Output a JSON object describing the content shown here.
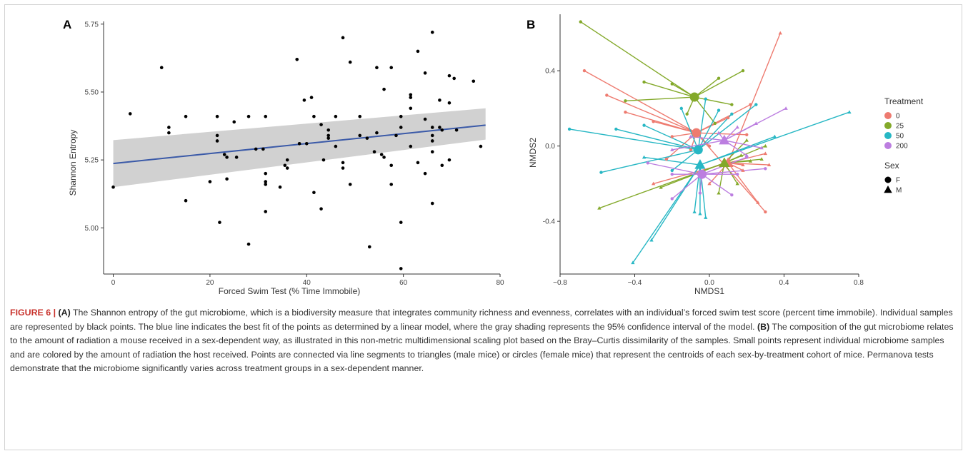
{
  "figure": {
    "label": "FIGURE 6 | ",
    "a_ref": "(A)",
    "text_a": " The Shannon entropy of the gut microbiome, which is a biodiversity measure that integrates community richness and evenness, correlates with an individual’s forced swim test score (percent time immobile). Individual samples are represented by black points. The blue line indicates the best fit of the points as determined by a linear model, where the gray shading represents the 95% confidence interval of the model. ",
    "b_ref": "(B)",
    "text_b": " The composition of the gut microbiome relates to the amount of radiation a mouse received in a sex-dependent way, as illustrated in this non-metric multidimensional scaling plot based on the Bray–Curtis dissimilarity of the samples. Small points represent individual microbiome samples and are colored by the amount of radiation the host received. Points are connected via line segments to triangles (male mice) or circles (female mice) that represent the centroids of each sex-by-treatment cohort of mice. Permanova tests demonstrate that the microbiome significantly varies across treatment groups in a sex-dependent manner."
  },
  "chart_data": [
    {
      "panel": "A",
      "type": "scatter",
      "xlabel": "Forced Swim Test (% Time Immobile)",
      "ylabel": "Shannon Entropy",
      "xlim": [
        -2,
        80
      ],
      "ylim": [
        4.83,
        5.76
      ],
      "xticks": [
        0,
        20,
        40,
        60,
        80
      ],
      "yticks": [
        5.0,
        5.25,
        5.5,
        5.75
      ],
      "ytick_labels": [
        "5.00",
        "5.25",
        "5.50",
        "5.75"
      ],
      "grid": false,
      "point_color": "#000000",
      "fit": {
        "color": "#3b5aa8",
        "x": [
          0,
          77
        ],
        "y": [
          5.237,
          5.378
        ]
      },
      "ci_band": {
        "color": "#cccccc",
        "x": [
          0,
          77
        ],
        "lower": [
          5.15,
          5.325
        ],
        "upper": [
          5.323,
          5.44
        ]
      },
      "points": [
        [
          0,
          5.15
        ],
        [
          3.5,
          5.42
        ],
        [
          10,
          5.59
        ],
        [
          11.5,
          5.37
        ],
        [
          11.5,
          5.35
        ],
        [
          15,
          5.41
        ],
        [
          15,
          5.1
        ],
        [
          20,
          5.17
        ],
        [
          21.5,
          5.41
        ],
        [
          21.5,
          5.34
        ],
        [
          21.5,
          5.32
        ],
        [
          22,
          5.02
        ],
        [
          23,
          5.27
        ],
        [
          23.5,
          5.18
        ],
        [
          23.5,
          5.26
        ],
        [
          25,
          5.39
        ],
        [
          25.5,
          5.26
        ],
        [
          28,
          5.41
        ],
        [
          28,
          4.94
        ],
        [
          29.5,
          5.29
        ],
        [
          31,
          5.29
        ],
        [
          31.5,
          5.41
        ],
        [
          31.5,
          5.2
        ],
        [
          31.5,
          5.17
        ],
        [
          31.5,
          5.16
        ],
        [
          31.5,
          5.06
        ],
        [
          34.5,
          5.15
        ],
        [
          35.5,
          5.23
        ],
        [
          36,
          5.25
        ],
        [
          36,
          5.22
        ],
        [
          38,
          5.62
        ],
        [
          38.5,
          5.31
        ],
        [
          39.5,
          5.47
        ],
        [
          40,
          5.31
        ],
        [
          41,
          5.48
        ],
        [
          41.5,
          5.41
        ],
        [
          41.5,
          5.13
        ],
        [
          43,
          5.38
        ],
        [
          43,
          5.07
        ],
        [
          43.5,
          5.25
        ],
        [
          44.5,
          5.36
        ],
        [
          44.5,
          5.34
        ],
        [
          44.5,
          5.33
        ],
        [
          46,
          5.41
        ],
        [
          46,
          5.3
        ],
        [
          47.5,
          5.7
        ],
        [
          47.5,
          5.24
        ],
        [
          47.5,
          5.22
        ],
        [
          49,
          5.61
        ],
        [
          49,
          5.16
        ],
        [
          51,
          5.41
        ],
        [
          51,
          5.34
        ],
        [
          52.5,
          5.33
        ],
        [
          53,
          4.93
        ],
        [
          54,
          5.28
        ],
        [
          54.5,
          5.59
        ],
        [
          54.5,
          5.35
        ],
        [
          55.5,
          5.27
        ],
        [
          56,
          5.51
        ],
        [
          56,
          5.26
        ],
        [
          57.5,
          5.59
        ],
        [
          57.5,
          5.23
        ],
        [
          57.5,
          5.16
        ],
        [
          58.5,
          5.34
        ],
        [
          59.5,
          5.41
        ],
        [
          59.5,
          5.37
        ],
        [
          59.5,
          5.02
        ],
        [
          59.5,
          4.85
        ],
        [
          61.5,
          5.49
        ],
        [
          61.5,
          5.48
        ],
        [
          61.5,
          5.44
        ],
        [
          61.5,
          5.3
        ],
        [
          63,
          5.65
        ],
        [
          63,
          5.24
        ],
        [
          64.5,
          5.57
        ],
        [
          64.5,
          5.4
        ],
        [
          64.5,
          5.2
        ],
        [
          66,
          5.72
        ],
        [
          66,
          5.37
        ],
        [
          66,
          5.34
        ],
        [
          66,
          5.32
        ],
        [
          66,
          5.28
        ],
        [
          66,
          5.09
        ],
        [
          67.5,
          5.47
        ],
        [
          67.5,
          5.37
        ],
        [
          68,
          5.36
        ],
        [
          68,
          5.23
        ],
        [
          69.5,
          5.56
        ],
        [
          69.5,
          5.46
        ],
        [
          69.5,
          5.25
        ],
        [
          70.5,
          5.55
        ],
        [
          71,
          5.36
        ],
        [
          74.5,
          5.54
        ],
        [
          76,
          5.3
        ]
      ]
    },
    {
      "panel": "B",
      "type": "scatter",
      "xlabel": "NMDS1",
      "ylabel": "NMDS2",
      "xlim": [
        -0.8,
        0.8
      ],
      "ylim": [
        -0.68,
        0.7
      ],
      "xticks": [
        -0.8,
        -0.4,
        0.0,
        0.4,
        0.8
      ],
      "xtick_labels": [
        "−0.8",
        "−0.4",
        "0.0",
        "0.4",
        "0.8"
      ],
      "yticks": [
        -0.4,
        0.0,
        0.4
      ],
      "ytick_labels": [
        "-0.4",
        "0.0",
        "0.4"
      ],
      "grid": false,
      "legend_position": "right",
      "legend": {
        "treatment_title": "Treatment",
        "treatment_items": [
          {
            "label": "0",
            "color": "#ee7b70"
          },
          {
            "label": "25",
            "color": "#83a92a"
          },
          {
            "label": "50",
            "color": "#27b7c4"
          },
          {
            "label": "200",
            "color": "#bc7ee0"
          }
        ],
        "sex_title": "Sex",
        "sex_items": [
          {
            "label": "F",
            "shape": "circle"
          },
          {
            "label": "M",
            "shape": "triangle"
          }
        ]
      },
      "groups": [
        {
          "treatment": "0",
          "sex": "F",
          "color": "#ee7b70",
          "centroid": [
            -0.07,
            0.07
          ],
          "points": [
            [
              -0.67,
              0.4
            ],
            [
              -0.55,
              0.27
            ],
            [
              -0.45,
              0.18
            ],
            [
              -0.3,
              0.13
            ],
            [
              -0.2,
              0.05
            ],
            [
              -0.1,
              -0.02
            ],
            [
              0.0,
              0.0
            ],
            [
              0.1,
              0.15
            ],
            [
              0.2,
              0.06
            ],
            [
              0.22,
              0.22
            ],
            [
              -0.23,
              -0.07
            ],
            [
              0.3,
              -0.35
            ]
          ]
        },
        {
          "treatment": "0",
          "sex": "M",
          "color": "#ee7b70",
          "centroid": [
            0.1,
            -0.09
          ],
          "points": [
            [
              0.38,
              0.6
            ],
            [
              0.3,
              -0.04
            ],
            [
              0.0,
              -0.2
            ],
            [
              0.18,
              -0.1
            ],
            [
              0.32,
              -0.1
            ],
            [
              -0.3,
              -0.2
            ],
            [
              0.26,
              -0.3
            ],
            [
              0.18,
              -0.13
            ]
          ]
        },
        {
          "treatment": "25",
          "sex": "F",
          "color": "#83a92a",
          "centroid": [
            -0.08,
            0.26
          ],
          "points": [
            [
              -0.69,
              0.66
            ],
            [
              -0.45,
              0.24
            ],
            [
              -0.35,
              0.34
            ],
            [
              -0.2,
              0.33
            ],
            [
              0.05,
              0.36
            ],
            [
              0.18,
              0.4
            ],
            [
              0.12,
              0.22
            ],
            [
              0.03,
              0.12
            ],
            [
              -0.12,
              0.17
            ]
          ]
        },
        {
          "treatment": "25",
          "sex": "M",
          "color": "#83a92a",
          "centroid": [
            0.08,
            -0.09
          ],
          "points": [
            [
              -0.59,
              -0.33
            ],
            [
              -0.26,
              -0.22
            ],
            [
              0.2,
              0.03
            ],
            [
              0.28,
              -0.07
            ],
            [
              0.05,
              -0.25
            ],
            [
              0.15,
              -0.2
            ],
            [
              0.22,
              -0.08
            ],
            [
              0.3,
              0.0
            ],
            [
              0.17,
              -0.05
            ]
          ]
        },
        {
          "treatment": "50",
          "sex": "F",
          "color": "#27b7c4",
          "centroid": [
            -0.06,
            -0.02
          ],
          "points": [
            [
              -0.75,
              0.09
            ],
            [
              -0.58,
              -0.14
            ],
            [
              -0.5,
              0.09
            ],
            [
              -0.35,
              0.11
            ],
            [
              -0.2,
              -0.13
            ],
            [
              0.05,
              0.19
            ],
            [
              -0.15,
              0.2
            ],
            [
              0.25,
              0.22
            ],
            [
              0.12,
              0.17
            ],
            [
              -0.02,
              0.25
            ]
          ]
        },
        {
          "treatment": "50",
          "sex": "M",
          "color": "#27b7c4",
          "centroid": [
            -0.05,
            -0.1
          ],
          "points": [
            [
              -0.41,
              -0.62
            ],
            [
              -0.31,
              -0.5
            ],
            [
              -0.05,
              -0.36
            ],
            [
              -0.02,
              -0.38
            ],
            [
              0.75,
              0.18
            ],
            [
              0.35,
              0.05
            ],
            [
              -0.35,
              -0.06
            ],
            [
              -0.08,
              -0.35
            ]
          ]
        },
        {
          "treatment": "200",
          "sex": "F",
          "color": "#bc7ee0",
          "centroid": [
            -0.04,
            -0.15
          ],
          "points": [
            [
              -0.33,
              -0.09
            ],
            [
              -0.2,
              -0.28
            ],
            [
              -0.05,
              -0.25
            ],
            [
              0.15,
              -0.15
            ],
            [
              0.12,
              -0.26
            ],
            [
              0.3,
              -0.12
            ],
            [
              0.2,
              -0.06
            ],
            [
              -0.2,
              -0.15
            ]
          ]
        },
        {
          "treatment": "200",
          "sex": "M",
          "color": "#bc7ee0",
          "centroid": [
            0.08,
            0.03
          ],
          "points": [
            [
              0.41,
              0.2
            ],
            [
              0.25,
              0.12
            ],
            [
              0.28,
              -0.01
            ],
            [
              0.15,
              0.1
            ],
            [
              0.05,
              0.07
            ],
            [
              0.2,
              -0.05
            ],
            [
              -0.1,
              0.05
            ],
            [
              -0.2,
              -0.02
            ]
          ]
        }
      ]
    }
  ]
}
